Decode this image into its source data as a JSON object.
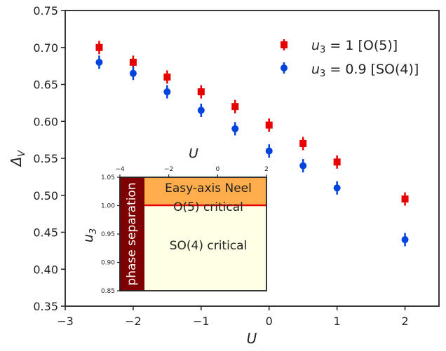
{
  "chart_data": {
    "type": "scatter",
    "xlabel": "U",
    "ylabel": "Δ_V",
    "xlim": [
      -3,
      2.5
    ],
    "ylim": [
      0.35,
      0.75
    ],
    "xticks": [
      "−3",
      "−2",
      "−1",
      "0",
      "1",
      "2"
    ],
    "yticks": [
      "0.35",
      "0.40",
      "0.45",
      "0.50",
      "0.55",
      "0.60",
      "0.65",
      "0.70",
      "0.75"
    ],
    "grid": false,
    "legend_position": "top-right",
    "series": [
      {
        "name": "u3 = 1   [O(5)]",
        "color": "#e60000",
        "marker": "square",
        "points": [
          {
            "x": -2.5,
            "y": 0.7,
            "err": 0.009
          },
          {
            "x": -2.0,
            "y": 0.68,
            "err": 0.009
          },
          {
            "x": -1.5,
            "y": 0.66,
            "err": 0.009
          },
          {
            "x": -1.0,
            "y": 0.64,
            "err": 0.009
          },
          {
            "x": -0.5,
            "y": 0.62,
            "err": 0.009
          },
          {
            "x": 0.0,
            "y": 0.595,
            "err": 0.009
          },
          {
            "x": 0.5,
            "y": 0.57,
            "err": 0.009
          },
          {
            "x": 1.0,
            "y": 0.545,
            "err": 0.009
          },
          {
            "x": 2.0,
            "y": 0.495,
            "err": 0.009
          }
        ]
      },
      {
        "name": "u3 = 0.9   [SO(4)]",
        "color": "#0044dd",
        "marker": "circle",
        "points": [
          {
            "x": -2.5,
            "y": 0.68,
            "err": 0.009
          },
          {
            "x": -2.0,
            "y": 0.665,
            "err": 0.009
          },
          {
            "x": -1.5,
            "y": 0.64,
            "err": 0.009
          },
          {
            "x": -1.0,
            "y": 0.615,
            "err": 0.009
          },
          {
            "x": -0.5,
            "y": 0.59,
            "err": 0.009
          },
          {
            "x": 0.0,
            "y": 0.56,
            "err": 0.009
          },
          {
            "x": 0.5,
            "y": 0.54,
            "err": 0.009
          },
          {
            "x": 1.0,
            "y": 0.51,
            "err": 0.009
          },
          {
            "x": 2.0,
            "y": 0.44,
            "err": 0.009
          }
        ]
      }
    ],
    "inset": {
      "type": "phase-diagram",
      "xlabel": "U",
      "ylabel": "u_3",
      "xlim": [
        -4,
        2
      ],
      "ylim": [
        0.85,
        1.05
      ],
      "xticks": [
        "−4",
        "−2",
        "0",
        "2"
      ],
      "yticks": [
        "0.85",
        "0.90",
        "0.95",
        "1.00",
        "1.05"
      ],
      "phase_separation_boundary_U": -3.35,
      "critical_line_u3": 1.0,
      "regions": {
        "phase_separation": "phase separation",
        "easy_axis": "Easy-axis Neel",
        "o5": "O(5) critical",
        "so4": "SO(4) critical"
      },
      "colors": {
        "phase_separation": "#7f0000",
        "easy_axis": "#ffad4c",
        "so4": "#ffffe6",
        "critical_line": "#e60000"
      }
    }
  }
}
